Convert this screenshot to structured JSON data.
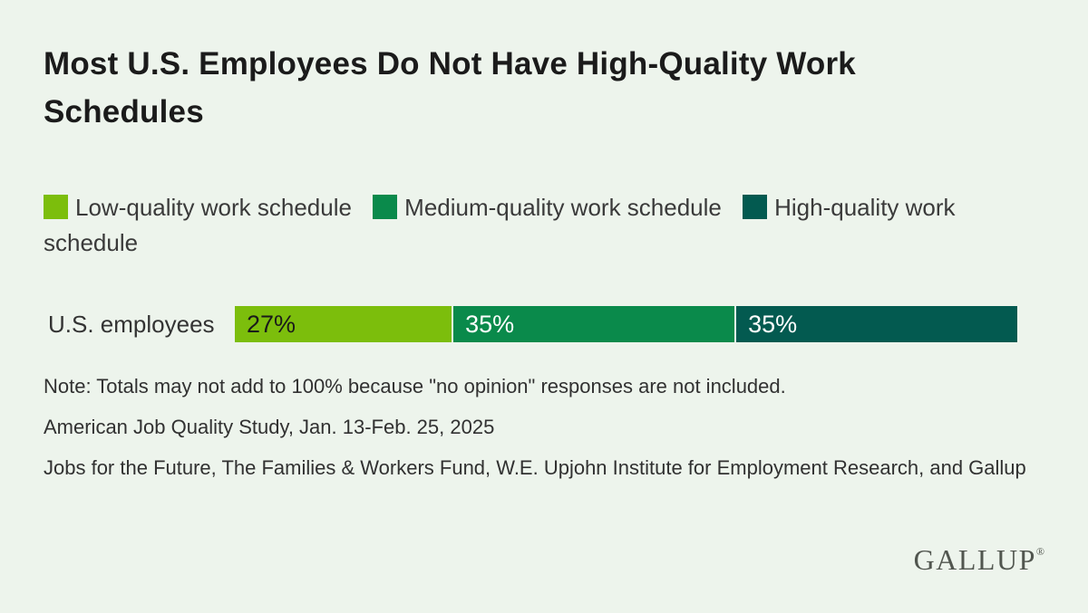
{
  "title": "Most U.S. Employees Do Not Have High-Quality Work Schedules",
  "colors": {
    "background": "#edf4ec",
    "low_quality_green": "#7cbe0c",
    "medium_quality_green": "#0a8a4b",
    "high_quality_teal": "#035a50",
    "title_text": "#1b1b1b",
    "body_text": "#313131",
    "logo_gray": "#51564f"
  },
  "legend": {
    "items": [
      {
        "label": "Low-quality work schedule",
        "color": "#7cbe0c"
      },
      {
        "label": "Medium-quality work schedule",
        "color": "#0a8a4b"
      },
      {
        "label": "High-quality work schedule",
        "color": "#035a50"
      }
    ]
  },
  "chart_data": {
    "type": "bar",
    "orientation": "horizontal",
    "stacked": true,
    "title": "Most U.S. Employees Do Not Have High-Quality Work Schedules",
    "categories": [
      "U.S. employees"
    ],
    "series": [
      {
        "name": "Low-quality work schedule",
        "value": 27,
        "label": "27%",
        "color": "#7cbe0c"
      },
      {
        "name": "Medium-quality work schedule",
        "value": 35,
        "label": "35%",
        "color": "#0a8a4b"
      },
      {
        "name": "High-quality work schedule",
        "value": 35,
        "label": "35%",
        "color": "#035a50"
      }
    ],
    "xlim": [
      0,
      100
    ],
    "grid": false,
    "legend_position": "top",
    "data_labels": "inside-left"
  },
  "notes": {
    "note1": "Note: Totals may not add to 100% because \"no opinion\" responses are not included.",
    "note2": "American Job Quality Study, Jan. 13-Feb. 25, 2025",
    "note3": "Jobs for the Future, The Families & Workers Fund, W.E. Upjohn Institute for Employment Research, and Gallup"
  },
  "logo": {
    "text": "GALLUP",
    "registered_mark": "®"
  }
}
